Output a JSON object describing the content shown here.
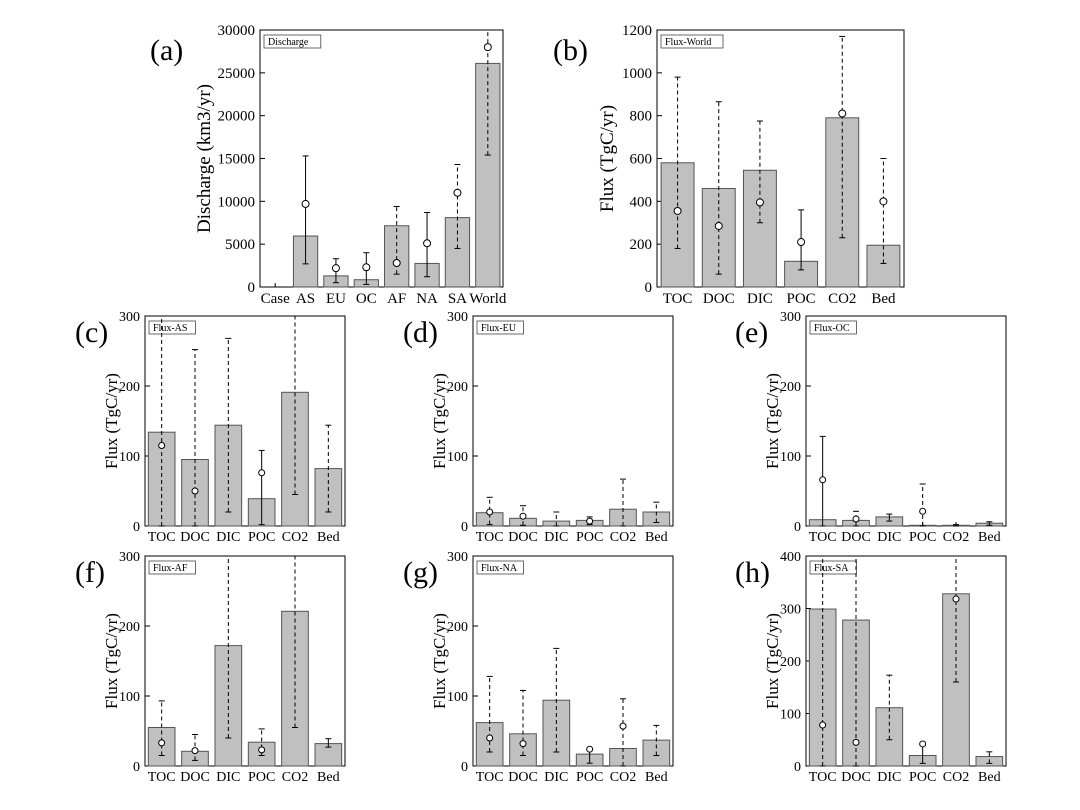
{
  "colors": {
    "bar_fill": "#c0c0c0",
    "bar_stroke": "#555555",
    "axis": "#000000",
    "error_bar": "#000000"
  },
  "chart_data": [
    {
      "id": "a",
      "panel_label": "(a)",
      "type": "bar",
      "legend": "Discharge",
      "ylabel": "Discharge (km3/yr)",
      "categories": [
        "Case",
        "AS",
        "EU",
        "OC",
        "AF",
        "NA",
        "SA",
        "World"
      ],
      "values": [
        null,
        5950,
        1300,
        850,
        7150,
        2750,
        8100,
        26100
      ],
      "err_low": [
        null,
        2700,
        500,
        300,
        1500,
        1200,
        4500,
        15400
      ],
      "err_high": [
        null,
        15300,
        3300,
        4000,
        9400,
        8700,
        14300,
        30000
      ],
      "err_style": [
        null,
        "solid",
        "solid",
        "solid",
        "dashed",
        "solid",
        "dashed",
        "dashed"
      ],
      "markers": [
        null,
        9700,
        2200,
        2300,
        2800,
        5100,
        11000,
        28000
      ],
      "ylim": [
        0,
        30000
      ],
      "yticks": [
        0,
        5000,
        10000,
        15000,
        20000,
        25000,
        30000
      ]
    },
    {
      "id": "b",
      "panel_label": "(b)",
      "type": "bar",
      "legend": "Flux-World",
      "ylabel": "Flux (TgC/yr)",
      "categories": [
        "TOC",
        "DOC",
        "DIC",
        "POC",
        "CO2",
        "Bed"
      ],
      "values": [
        580,
        460,
        545,
        120,
        790,
        195
      ],
      "err_low": [
        180,
        60,
        300,
        80,
        230,
        110
      ],
      "err_high": [
        980,
        865,
        775,
        360,
        1170,
        600
      ],
      "err_style": [
        "dashed",
        "dashed",
        "dashed",
        "solid",
        "dashed",
        "dashed"
      ],
      "markers": [
        355,
        285,
        395,
        210,
        810,
        400
      ],
      "ylim": [
        0,
        1200
      ],
      "yticks": [
        0,
        200,
        400,
        600,
        800,
        1000,
        1200
      ]
    },
    {
      "id": "c",
      "panel_label": "(c)",
      "type": "bar",
      "legend": "Flux-AS",
      "ylabel": "Flux (TgC/yr)",
      "categories": [
        "TOC",
        "DOC",
        "DIC",
        "POC",
        "CO2",
        "Bed"
      ],
      "values": [
        134,
        95,
        144,
        39,
        191,
        82
      ],
      "err_low": [
        0,
        0,
        20,
        2,
        45,
        20
      ],
      "err_high": [
        300,
        252,
        268,
        108,
        300,
        144
      ],
      "err_style": [
        "dashed",
        "dashed",
        "dashed",
        "solid",
        "dashed",
        "dashed"
      ],
      "markers": [
        115,
        50,
        null,
        76,
        null,
        null
      ],
      "ylim": [
        0,
        300
      ],
      "yticks": [
        0,
        100,
        200,
        300
      ]
    },
    {
      "id": "d",
      "panel_label": "(d)",
      "type": "bar",
      "legend": "Flux-EU",
      "ylabel": "Flux (TgC/yr)",
      "categories": [
        "TOC",
        "DOC",
        "DIC",
        "POC",
        "CO2",
        "Bed"
      ],
      "values": [
        19,
        11,
        7,
        8,
        24,
        20
      ],
      "err_low": [
        2,
        1,
        0,
        2,
        0,
        5
      ],
      "err_high": [
        41,
        29,
        20,
        13,
        67,
        34
      ],
      "err_style": [
        "dashed",
        "dashed",
        "dashed",
        "dashed",
        "dashed",
        "dashed"
      ],
      "markers": [
        20,
        14,
        null,
        7,
        null,
        null
      ],
      "ylim": [
        0,
        300
      ],
      "yticks": [
        0,
        100,
        200,
        300
      ]
    },
    {
      "id": "e",
      "panel_label": "(e)",
      "type": "bar",
      "legend": "Flux-OC",
      "ylabel": "Flux (TgC/yr)",
      "categories": [
        "TOC",
        "DOC",
        "DIC",
        "POC",
        "CO2",
        "Bed"
      ],
      "values": [
        9,
        8,
        13,
        1,
        1,
        4
      ],
      "err_low": [
        0,
        0,
        7,
        0,
        0,
        1
      ],
      "err_high": [
        128,
        21,
        17,
        60,
        2,
        6
      ],
      "err_style": [
        "solid",
        "dashed",
        "solid",
        "dashed",
        "solid",
        "solid"
      ],
      "markers": [
        66,
        10,
        null,
        21,
        null,
        null
      ],
      "ylim": [
        0,
        300
      ],
      "yticks": [
        0,
        100,
        200,
        300
      ]
    },
    {
      "id": "f",
      "panel_label": "(f)",
      "type": "bar",
      "legend": "Flux-AF",
      "ylabel": "Flux (TgC/yr)",
      "categories": [
        "TOC",
        "DOC",
        "DIC",
        "POC",
        "CO2",
        "Bed"
      ],
      "values": [
        55,
        21,
        172,
        34,
        221,
        32
      ],
      "err_low": [
        15,
        8,
        40,
        15,
        55,
        27
      ],
      "err_high": [
        93,
        45,
        300,
        53,
        300,
        39
      ],
      "err_style": [
        "dashed",
        "dashed",
        "dashed",
        "dashed",
        "dashed",
        "solid"
      ],
      "markers": [
        33,
        22,
        null,
        23,
        null,
        null
      ],
      "ylim": [
        0,
        300
      ],
      "yticks": [
        0,
        100,
        200,
        300
      ]
    },
    {
      "id": "g",
      "panel_label": "(g)",
      "type": "bar",
      "legend": "Flux-NA",
      "ylabel": "Flux (TgC/yr)",
      "categories": [
        "TOC",
        "DOC",
        "DIC",
        "POC",
        "CO2",
        "Bed"
      ],
      "values": [
        62,
        46,
        94,
        17,
        25,
        37
      ],
      "err_low": [
        20,
        15,
        20,
        4,
        0,
        15
      ],
      "err_high": [
        128,
        108,
        168,
        25,
        96,
        58
      ],
      "err_style": [
        "dashed",
        "dashed",
        "dashed",
        "solid",
        "dashed",
        "dashed"
      ],
      "markers": [
        40,
        32,
        null,
        24,
        57,
        null
      ],
      "ylim": [
        0,
        300
      ],
      "yticks": [
        0,
        100,
        200,
        300
      ]
    },
    {
      "id": "h",
      "panel_label": "(h)",
      "type": "bar",
      "legend": "Flux-SA",
      "ylabel": "Flux (TgC/yr)",
      "categories": [
        "TOC",
        "DOC",
        "DIC",
        "POC",
        "CO2",
        "Bed"
      ],
      "values": [
        299,
        278,
        111,
        20,
        328,
        18
      ],
      "err_low": [
        0,
        0,
        50,
        5,
        160,
        5
      ],
      "err_high": [
        400,
        400,
        173,
        45,
        400,
        27
      ],
      "err_style": [
        "dashed",
        "dashed",
        "dashed",
        "solid",
        "dashed",
        "dashed"
      ],
      "markers": [
        78,
        45,
        null,
        42,
        318,
        null
      ],
      "ylim": [
        0,
        400
      ],
      "yticks": [
        0,
        100,
        200,
        300,
        400
      ]
    }
  ]
}
